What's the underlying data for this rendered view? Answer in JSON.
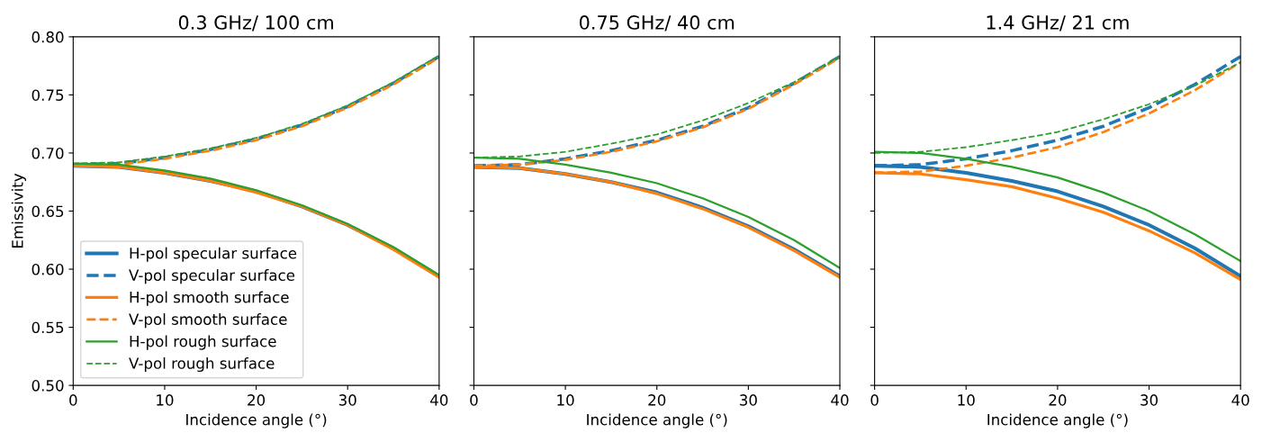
{
  "chart_data": [
    {
      "type": "line",
      "title": "0.3 GHz/ 100 cm",
      "xlabel": "Incidence angle (°)",
      "ylabel": "Emissivity",
      "x": [
        0,
        5,
        10,
        15,
        20,
        25,
        30,
        35,
        40
      ],
      "xlim": [
        0,
        40
      ],
      "xticks": [
        0,
        10,
        20,
        30,
        40
      ],
      "ylim": [
        0.5,
        0.8
      ],
      "yticks": [
        {
          "value": 0.5,
          "label": "0.50"
        },
        {
          "value": 0.55,
          "label": "0.55"
        },
        {
          "value": 0.6,
          "label": "0.60"
        },
        {
          "value": 0.65,
          "label": "0.65"
        },
        {
          "value": 0.7,
          "label": "0.70"
        },
        {
          "value": 0.75,
          "label": "0.75"
        },
        {
          "value": 0.8,
          "label": "0.80"
        }
      ],
      "grid": false,
      "legend": "bottom left",
      "marker": "none",
      "series": [
        {
          "name": "H-pol specular surface",
          "color": "#1f77b4",
          "line_style": "solid",
          "values": [
            0.689,
            0.688,
            0.683,
            0.676,
            0.667,
            0.654,
            0.638,
            0.618,
            0.594
          ]
        },
        {
          "name": "V-pol specular surface",
          "color": "#1f77b4",
          "line_style": "dashed",
          "values": [
            0.69,
            0.691,
            0.696,
            0.703,
            0.712,
            0.724,
            0.74,
            0.76,
            0.783
          ]
        },
        {
          "name": "H-pol smooth surface",
          "color": "#ff7f0e",
          "line_style": "solid",
          "values": [
            0.689,
            0.688,
            0.683,
            0.676,
            0.666,
            0.654,
            0.638,
            0.617,
            0.593
          ]
        },
        {
          "name": "V-pol smooth surface",
          "color": "#ff7f0e",
          "line_style": "dashed",
          "values": [
            0.689,
            0.69,
            0.695,
            0.702,
            0.711,
            0.723,
            0.739,
            0.759,
            0.782
          ]
        },
        {
          "name": "H-pol rough surface",
          "color": "#2ca02c",
          "line_style": "solid",
          "values": [
            0.691,
            0.69,
            0.685,
            0.678,
            0.668,
            0.655,
            0.639,
            0.619,
            0.595
          ]
        },
        {
          "name": "V-pol rough surface",
          "color": "#2ca02c",
          "line_style": "dashed",
          "values": [
            0.691,
            0.692,
            0.697,
            0.704,
            0.713,
            0.725,
            0.741,
            0.761,
            0.784
          ]
        }
      ]
    },
    {
      "type": "line",
      "title": "0.75 GHz/ 40 cm",
      "xlabel": "Incidence angle (°)",
      "x": [
        0,
        5,
        10,
        15,
        20,
        25,
        30,
        35,
        40
      ],
      "xlim": [
        0,
        40
      ],
      "xticks": [
        0,
        10,
        20,
        30,
        40
      ],
      "ylim": [
        0.5,
        0.8
      ],
      "yticks": [
        0.5,
        0.55,
        0.6,
        0.65,
        0.7,
        0.75,
        0.8
      ],
      "tick_labels": "x",
      "grid": false,
      "marker": "none",
      "series": [
        {
          "color": "#1f77b4",
          "line_style": "solid",
          "values": [
            0.688,
            0.687,
            0.682,
            0.675,
            0.666,
            0.653,
            0.637,
            0.617,
            0.594
          ]
        },
        {
          "color": "#1f77b4",
          "line_style": "dashed",
          "values": [
            0.689,
            0.69,
            0.695,
            0.702,
            0.711,
            0.723,
            0.739,
            0.76,
            0.783
          ]
        },
        {
          "color": "#ff7f0e",
          "line_style": "solid",
          "values": [
            0.688,
            0.687,
            0.682,
            0.675,
            0.665,
            0.652,
            0.636,
            0.616,
            0.593
          ]
        },
        {
          "color": "#ff7f0e",
          "line_style": "dashed",
          "values": [
            0.689,
            0.69,
            0.694,
            0.701,
            0.71,
            0.722,
            0.738,
            0.759,
            0.782
          ]
        },
        {
          "color": "#2ca02c",
          "line_style": "solid",
          "values": [
            0.696,
            0.695,
            0.69,
            0.683,
            0.674,
            0.661,
            0.645,
            0.625,
            0.601
          ]
        },
        {
          "color": "#2ca02c",
          "line_style": "dashed",
          "values": [
            0.696,
            0.697,
            0.701,
            0.708,
            0.716,
            0.728,
            0.743,
            0.761,
            0.783
          ]
        }
      ]
    },
    {
      "type": "line",
      "title": "1.4 GHz/ 21 cm",
      "xlabel": "Incidence angle (°)",
      "x": [
        0,
        5,
        10,
        15,
        20,
        25,
        30,
        35,
        40
      ],
      "xlim": [
        0,
        40
      ],
      "xticks": [
        0,
        10,
        20,
        30,
        40
      ],
      "ylim": [
        0.5,
        0.8
      ],
      "yticks": [
        0.5,
        0.55,
        0.6,
        0.65,
        0.7,
        0.75,
        0.8
      ],
      "tick_labels": "x",
      "grid": false,
      "marker": "none",
      "series": [
        {
          "color": "#1f77b4",
          "line_style": "solid",
          "values": [
            0.689,
            0.688,
            0.683,
            0.676,
            0.667,
            0.654,
            0.638,
            0.618,
            0.594
          ]
        },
        {
          "color": "#1f77b4",
          "line_style": "dashed",
          "values": [
            0.689,
            0.69,
            0.695,
            0.702,
            0.711,
            0.723,
            0.739,
            0.759,
            0.783
          ]
        },
        {
          "color": "#ff7f0e",
          "line_style": "solid",
          "values": [
            0.683,
            0.682,
            0.677,
            0.671,
            0.661,
            0.649,
            0.633,
            0.614,
            0.591
          ]
        },
        {
          "color": "#ff7f0e",
          "line_style": "dashed",
          "values": [
            0.683,
            0.684,
            0.689,
            0.696,
            0.705,
            0.718,
            0.734,
            0.754,
            0.778
          ]
        },
        {
          "color": "#2ca02c",
          "line_style": "solid",
          "values": [
            0.701,
            0.7,
            0.695,
            0.688,
            0.679,
            0.666,
            0.65,
            0.63,
            0.607
          ]
        },
        {
          "color": "#2ca02c",
          "line_style": "dashed",
          "values": [
            0.7,
            0.701,
            0.705,
            0.711,
            0.718,
            0.729,
            0.742,
            0.758,
            0.778
          ]
        }
      ]
    }
  ]
}
